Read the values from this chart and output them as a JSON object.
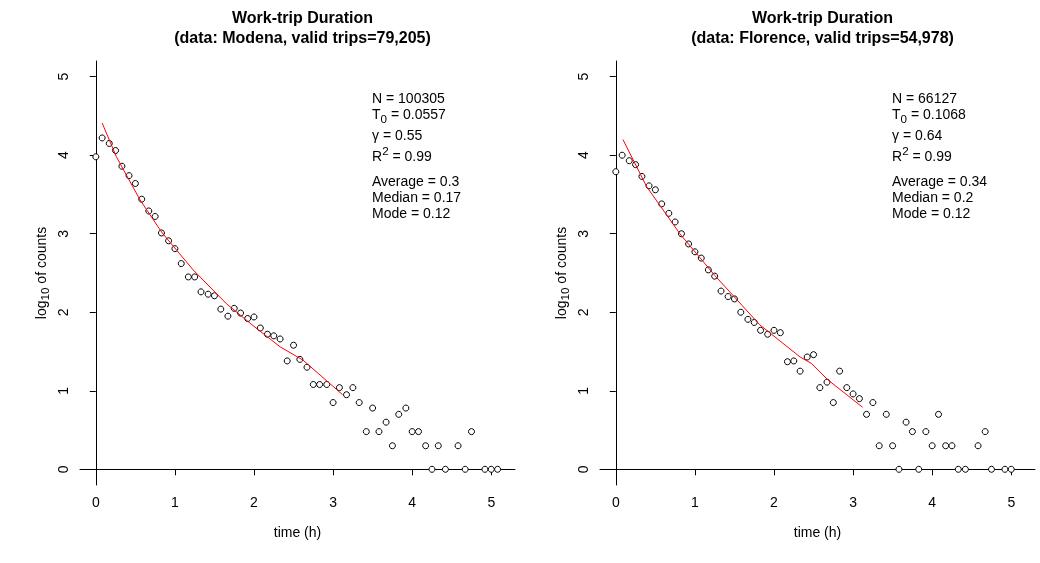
{
  "chart_data": [
    {
      "type": "scatter",
      "title": "Work-trip Duration\n(data: Modena, valid trips=79,205)",
      "xlabel": "time (h)",
      "ylabel": "log$_{10}$ of counts",
      "xlim": [
        -0.2,
        5.3
      ],
      "ylim": [
        -0.2,
        5.2
      ],
      "xticks": [
        0,
        1,
        2,
        3,
        4,
        5
      ],
      "yticks": [
        0,
        1,
        2,
        3,
        4,
        5
      ],
      "grid": false,
      "annotations": [
        "N = 100305\nT$_{0}$ = 0.0557\nγ = 0.55\nR$^{2}$ = 0.99",
        "Average = 0.3\nMedian = 0.17\nMode = 0.12"
      ],
      "series": [
        {
          "type": "scatter",
          "color": "#000000",
          "marker": "circle",
          "x": [
            0,
            0.08,
            0.17,
            0.25,
            0.33,
            0.42,
            0.5,
            0.58,
            0.67,
            0.75,
            0.83,
            0.92,
            1,
            1.08,
            1.17,
            1.25,
            1.33,
            1.42,
            1.5,
            1.58,
            1.67,
            1.75,
            1.83,
            1.92,
            2,
            2.08,
            2.17,
            2.25,
            2.33,
            2.42,
            2.5,
            2.58,
            2.67,
            2.75,
            2.83,
            2.92,
            3,
            3.08,
            3.17,
            3.25,
            3.33,
            3.42,
            3.5,
            3.58,
            3.67,
            3.75,
            3.83,
            3.92,
            4,
            4.08,
            4.17,
            4.25,
            4.33,
            4.42,
            4.58,
            4.67,
            4.75,
            4.92,
            5,
            5.08
          ],
          "values": [
            3.98,
            4.22,
            4.15,
            4.06,
            3.86,
            3.74,
            3.64,
            3.44,
            3.29,
            3.22,
            3.01,
            2.91,
            2.81,
            2.62,
            2.45,
            2.45,
            2.26,
            2.23,
            2.21,
            2.04,
            1.95,
            2.05,
            1.99,
            1.92,
            1.94,
            1.8,
            1.72,
            1.7,
            1.66,
            1.38,
            1.58,
            1.4,
            1.3,
            1.08,
            1.08,
            1.08,
            0.85,
            1.04,
            0.95,
            1.04,
            0.85,
            0.48,
            0.78,
            0.48,
            0.6,
            0.3,
            0.7,
            0.78,
            0.48,
            0.48,
            0.3,
            0,
            0.3,
            0,
            0.3,
            0,
            0.48,
            0,
            0,
            0
          ]
        },
        {
          "type": "line",
          "color": "#ff0000",
          "marker": "none",
          "line_style": "solid",
          "x": [
            0.08,
            0.26,
            0.56,
            0.84,
            1.23,
            1.65,
            2.0,
            2.33,
            2.62,
            3.12
          ],
          "values": [
            4.41,
            3.98,
            3.43,
            3.01,
            2.54,
            2.11,
            1.82,
            1.56,
            1.39,
            0.95
          ]
        }
      ]
    },
    {
      "type": "scatter",
      "title": "Work-trip Duration\n(data: Florence, valid trips=54,978)",
      "xlabel": "time (h)",
      "ylabel": "log$_{10}$ of counts",
      "xlim": [
        -0.2,
        5.3
      ],
      "ylim": [
        -0.2,
        5.2
      ],
      "xticks": [
        0,
        1,
        2,
        3,
        4,
        5
      ],
      "yticks": [
        0,
        1,
        2,
        3,
        4,
        5
      ],
      "grid": false,
      "annotations": [
        "N = 66127\nT$_{0}$ = 0.1068\nγ = 0.64\nR$^{2}$ = 0.99",
        "Average = 0.34\nMedian = 0.2\nMode = 0.12"
      ],
      "series": [
        {
          "type": "scatter",
          "color": "#000000",
          "marker": "circle",
          "x": [
            0,
            0.08,
            0.17,
            0.25,
            0.33,
            0.42,
            0.5,
            0.58,
            0.67,
            0.75,
            0.83,
            0.92,
            1,
            1.08,
            1.17,
            1.25,
            1.33,
            1.42,
            1.5,
            1.58,
            1.67,
            1.75,
            1.83,
            1.92,
            2,
            2.08,
            2.17,
            2.25,
            2.33,
            2.42,
            2.5,
            2.58,
            2.67,
            2.75,
            2.83,
            2.92,
            3,
            3.08,
            3.17,
            3.25,
            3.33,
            3.42,
            3.5,
            3.58,
            3.67,
            3.75,
            3.83,
            3.92,
            4,
            4.08,
            4.17,
            4.25,
            4.33,
            4.42,
            4.58,
            4.67,
            4.75,
            4.92,
            5
          ],
          "values": [
            3.79,
            4.0,
            3.93,
            3.88,
            3.73,
            3.61,
            3.56,
            3.38,
            3.26,
            3.15,
            3.0,
            2.87,
            2.77,
            2.69,
            2.54,
            2.46,
            2.27,
            2.2,
            2.17,
            2.0,
            1.91,
            1.87,
            1.77,
            1.72,
            1.77,
            1.74,
            1.37,
            1.38,
            1.25,
            1.43,
            1.46,
            1.04,
            1.11,
            0.85,
            1.25,
            1.04,
            0.96,
            0.9,
            0.7,
            0.85,
            0.3,
            0.7,
            0.3,
            0,
            0.6,
            0.48,
            0,
            0.48,
            0.3,
            0.7,
            0.3,
            0.3,
            0,
            0,
            0.3,
            0.48,
            0,
            0,
            0
          ]
        },
        {
          "type": "line",
          "color": "#ff0000",
          "marker": "none",
          "line_style": "solid",
          "x": [
            0.09,
            0.39,
            0.81,
            1.25,
            1.82,
            2.33,
            2.47,
            2.68,
            3.12
          ],
          "values": [
            4.2,
            3.6,
            3.0,
            2.47,
            1.84,
            1.43,
            1.35,
            1.14,
            0.79
          ]
        }
      ]
    }
  ]
}
